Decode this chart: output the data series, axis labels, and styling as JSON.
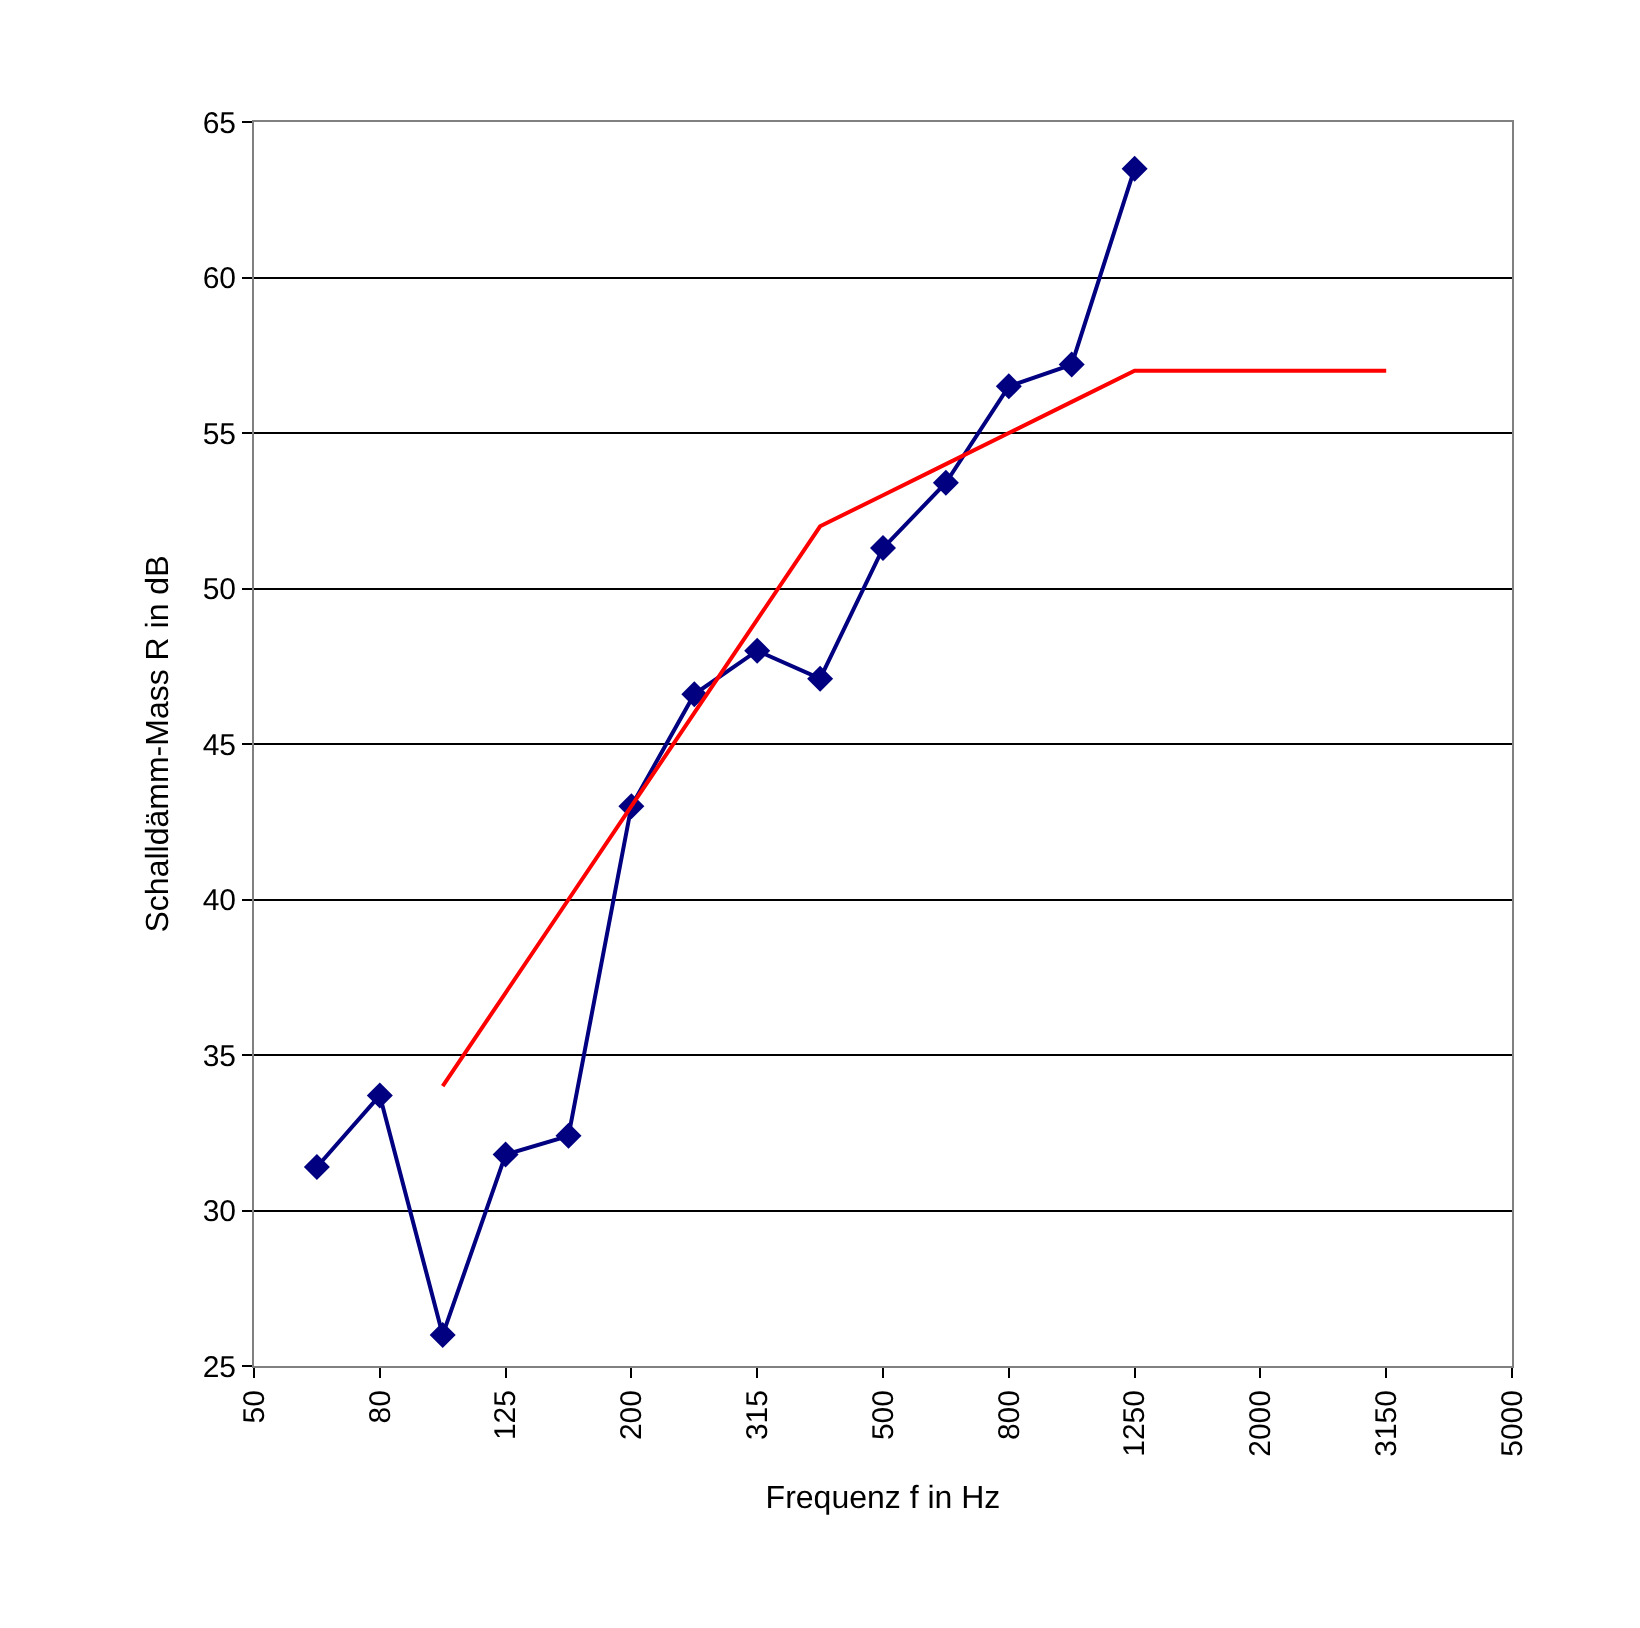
{
  "chart_data": {
    "type": "line",
    "xlabel": "Frequenz f in Hz",
    "ylabel": "Schalldämm-Mass R in dB",
    "categories": [
      "50",
      null,
      "80",
      null,
      "125",
      null,
      "200",
      null,
      "315",
      null,
      "500",
      null,
      "800",
      null,
      "1250",
      null,
      "2000",
      null,
      "3150",
      null,
      "5000"
    ],
    "series": [
      {
        "color": "#000080",
        "marker": "diamond",
        "values": [
          null,
          31.4,
          33.7,
          26.0,
          31.8,
          32.4,
          43.0,
          46.6,
          48.0,
          47.1,
          51.3,
          53.4,
          56.5,
          57.2,
          63.5,
          null,
          null,
          null,
          null,
          null,
          null
        ]
      },
      {
        "color": "#ff0000",
        "marker": "none",
        "values": [
          null,
          null,
          null,
          34,
          37,
          40,
          43,
          46,
          49,
          52,
          53,
          54,
          55,
          56,
          57,
          57,
          57,
          57,
          57,
          null,
          null
        ]
      }
    ],
    "ylim": [
      25,
      65
    ],
    "yticks": [
      25,
      30,
      35,
      40,
      45,
      50,
      55,
      60,
      65
    ],
    "grid": "y"
  }
}
